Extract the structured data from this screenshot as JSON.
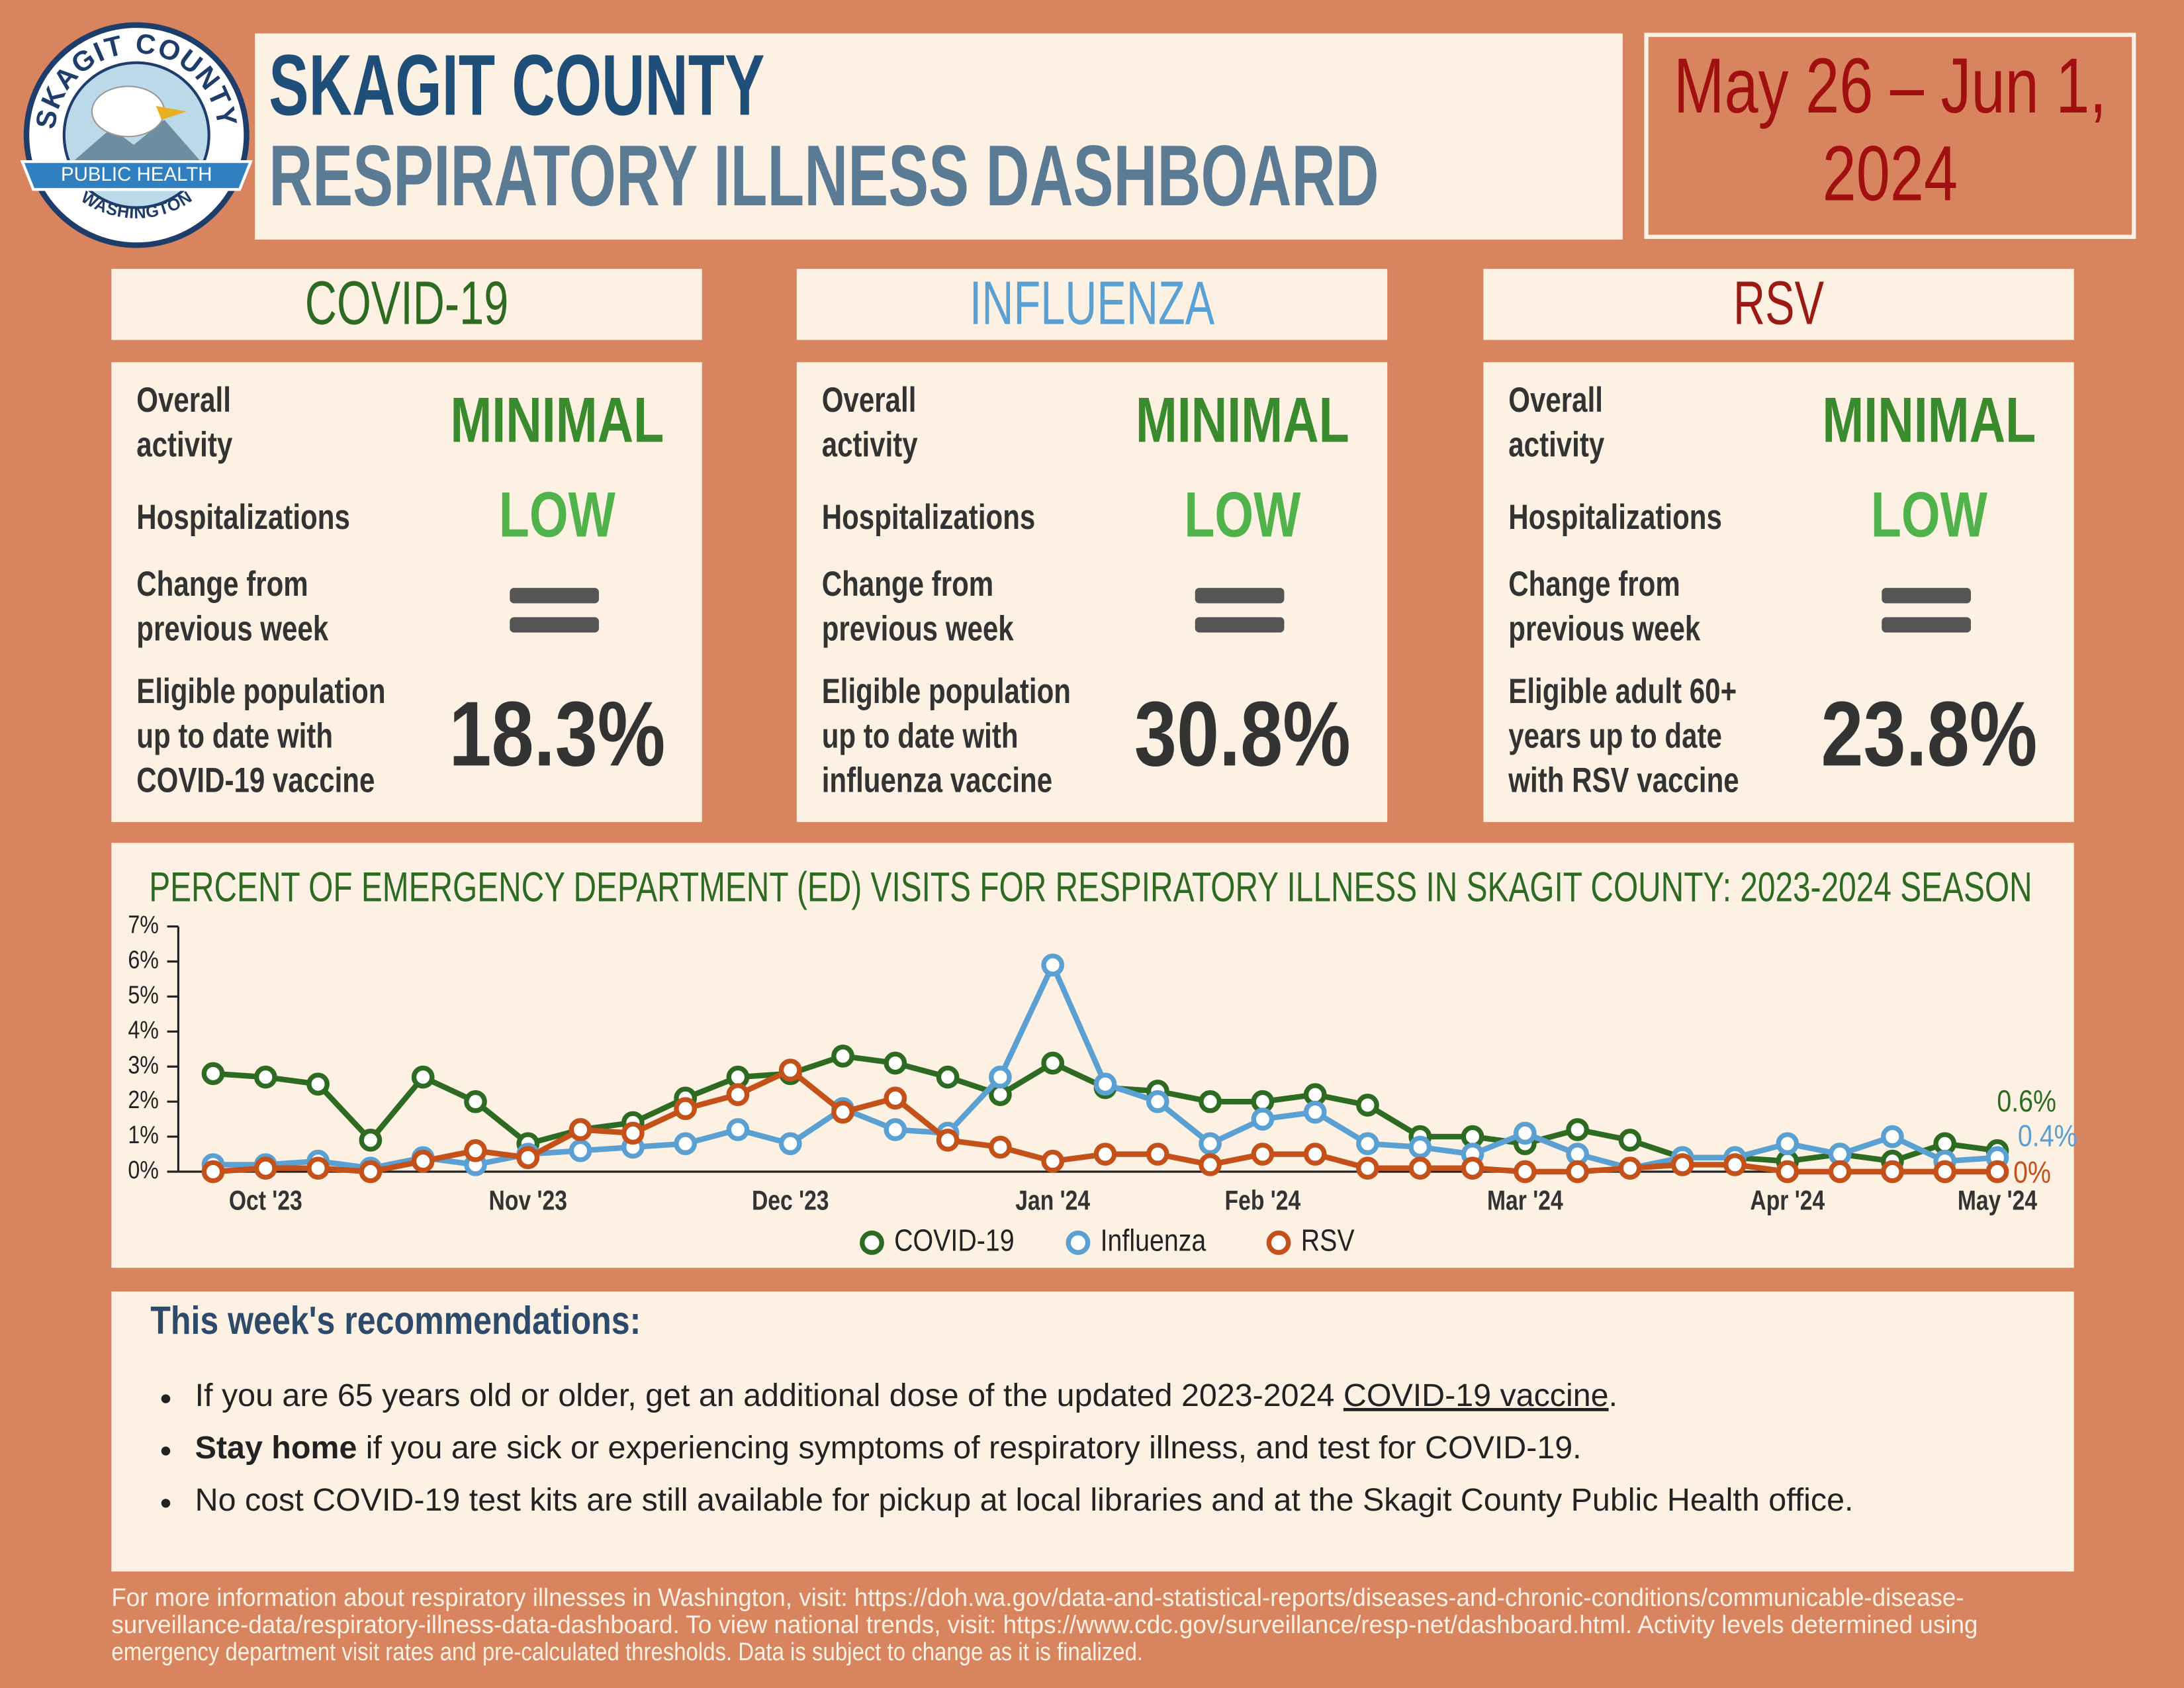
{
  "header": {
    "logo": {
      "top": "SKAGIT COUNTY",
      "banner": "PUBLIC HEALTH",
      "bottom": "WASHINGTON"
    },
    "title_line1": "SKAGIT COUNTY",
    "title_line2": "RESPIRATORY ILLNESS DASHBOARD",
    "date": [
      "May 26 – Jun 1,",
      "2024"
    ]
  },
  "cards": [
    {
      "title": "COVID-19",
      "color": "#2d6a22",
      "rows": [
        {
          "label": [
            "Overall",
            "activity"
          ],
          "value": "MINIMAL",
          "value_color": "#3a8a2e"
        },
        {
          "label": [
            "Hospitalizations"
          ],
          "value": "LOW",
          "value_color": "#4fb24a"
        },
        {
          "label": [
            "Change from",
            "previous week"
          ]
        },
        {
          "label": [
            "Eligible population",
            "up to date with",
            "COVID-19 vaccine"
          ],
          "value": "18.3%",
          "value_color": "#333333"
        }
      ]
    },
    {
      "title": "INFLUENZA",
      "color": "#5aa0d2",
      "rows": [
        {
          "label": [
            "Overall",
            "activity"
          ],
          "value": "MINIMAL",
          "value_color": "#3a8a2e"
        },
        {
          "label": [
            "Hospitalizations"
          ],
          "value": "LOW",
          "value_color": "#4fb24a"
        },
        {
          "label": [
            "Change from",
            "previous week"
          ]
        },
        {
          "label": [
            "Eligible population",
            "up to date with",
            "influenza vaccine"
          ],
          "value": "30.8%",
          "value_color": "#333333"
        }
      ]
    },
    {
      "title": "RSV",
      "color": "#9b1a14",
      "rows": [
        {
          "label": [
            "Overall",
            "activity"
          ],
          "value": "MINIMAL",
          "value_color": "#3a8a2e"
        },
        {
          "label": [
            "Hospitalizations"
          ],
          "value": "LOW",
          "value_color": "#4fb24a"
        },
        {
          "label": [
            "Change from",
            "previous week"
          ]
        },
        {
          "label": [
            "Eligible adult 60+",
            "years up to date",
            "with RSV vaccine"
          ],
          "value": "23.8%",
          "value_color": "#333333"
        }
      ]
    }
  ],
  "chart_data": {
    "type": "line",
    "title": "PERCENT OF EMERGENCY DEPARTMENT (ED) VISITS FOR RESPIRATORY ILLNESS IN SKAGIT COUNTY: 2023-2024 SEASON",
    "categories": [
      null,
      "Oct '23",
      null,
      null,
      null,
      null,
      "Nov '23",
      null,
      null,
      null,
      null,
      "Dec '23",
      null,
      null,
      null,
      null,
      "Jan '24",
      null,
      null,
      null,
      "Feb '24",
      null,
      null,
      null,
      null,
      "Mar '24",
      null,
      null,
      null,
      null,
      "Apr '24",
      null,
      null,
      null,
      "May '24"
    ],
    "ylim": [
      0,
      7
    ],
    "yticks": [
      {
        "value": 0,
        "label": "0%"
      },
      {
        "value": 1,
        "label": "1%"
      },
      {
        "value": 2,
        "label": "2%"
      },
      {
        "value": 3,
        "label": "3%"
      },
      {
        "value": 4,
        "label": "4%"
      },
      {
        "value": 5,
        "label": "5%"
      },
      {
        "value": 6,
        "label": "6%"
      },
      {
        "value": 7,
        "label": "7%"
      }
    ],
    "series": [
      {
        "name": "COVID-19",
        "color": "#2d6a22",
        "values": [
          2.8,
          2.7,
          2.5,
          0.9,
          2.7,
          2.0,
          0.8,
          1.2,
          1.4,
          2.1,
          2.7,
          2.8,
          3.3,
          3.1,
          2.7,
          2.2,
          3.1,
          2.4,
          2.3,
          2.0,
          2.0,
          2.2,
          1.9,
          1.0,
          1.0,
          0.8,
          1.2,
          0.9,
          0.4,
          0.4,
          0.3,
          0.5,
          0.3,
          0.8,
          0.6
        ],
        "value_labels": [
          null,
          null,
          null,
          null,
          null,
          null,
          null,
          null,
          null,
          null,
          null,
          null,
          null,
          null,
          null,
          null,
          null,
          null,
          null,
          null,
          null,
          null,
          null,
          null,
          null,
          null,
          null,
          null,
          null,
          null,
          null,
          null,
          null,
          null,
          "0.6%"
        ]
      },
      {
        "name": "Influenza",
        "color": "#5aa0d2",
        "values": [
          0.2,
          0.2,
          0.3,
          0.1,
          0.4,
          0.2,
          0.5,
          0.6,
          0.7,
          0.8,
          1.2,
          0.8,
          1.8,
          1.2,
          1.1,
          2.7,
          5.9,
          2.5,
          2.0,
          0.8,
          1.5,
          1.7,
          0.8,
          0.7,
          0.5,
          1.1,
          0.5,
          0.1,
          0.4,
          0.4,
          0.8,
          0.5,
          1.0,
          0.3,
          0.4
        ],
        "value_labels": [
          null,
          null,
          null,
          null,
          null,
          null,
          null,
          null,
          null,
          null,
          null,
          null,
          null,
          null,
          null,
          null,
          null,
          null,
          null,
          null,
          null,
          null,
          null,
          null,
          null,
          null,
          null,
          null,
          null,
          null,
          null,
          null,
          null,
          null,
          "0.4%"
        ]
      },
      {
        "name": "RSV",
        "color": "#c4501a",
        "values": [
          0,
          0.1,
          0.1,
          0,
          0.3,
          0.6,
          0.4,
          1.2,
          1.1,
          1.8,
          2.2,
          2.9,
          1.7,
          2.1,
          0.9,
          0.7,
          0.3,
          0.5,
          0.5,
          0.2,
          0.5,
          0.5,
          0.1,
          0.1,
          0.1,
          0,
          0,
          0.1,
          0.2,
          0.2,
          0,
          0,
          0,
          0,
          0
        ],
        "value_labels": [
          null,
          null,
          null,
          null,
          null,
          null,
          null,
          null,
          null,
          null,
          null,
          null,
          null,
          null,
          null,
          null,
          null,
          null,
          null,
          null,
          null,
          null,
          null,
          null,
          null,
          null,
          null,
          null,
          null,
          null,
          null,
          null,
          null,
          null,
          "0%"
        ]
      }
    ],
    "legend": "bottom"
  },
  "recommendations": {
    "heading": "This week's recommendations:",
    "items": [
      {
        "text": "If you are 65 years old or older, get an additional dose of the updated 2023-2024 ",
        "link": "COVID-19 vaccine",
        "after": "."
      },
      {
        "bold": "Stay home",
        "text": " if you are sick or experiencing symptoms of respiratory illness, and test for COVID-19."
      },
      {
        "text": "No cost COVID-19 test kits are still available for pickup at local libraries and at the Skagit County Public Health office."
      }
    ]
  },
  "footer": [
    "For more information about respiratory illnesses in Washington, visit: https://doh.wa.gov/data-and-statistical-reports/diseases-and-chronic-conditions/communicable-disease-",
    "surveillance-data/respiratory-illness-data-dashboard. To view national trends, visit: https://www.cdc.gov/surveillance/resp-net/dashboard.html. Activity levels determined using",
    "emergency department visit rates and pre-calculated thresholds. Data is subject to change as it is finalized."
  ]
}
